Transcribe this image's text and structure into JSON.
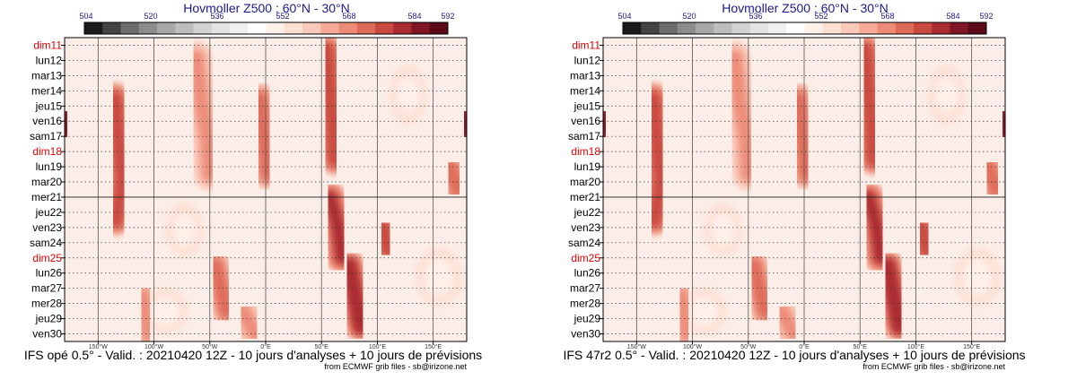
{
  "colors": {
    "colorbar": [
      "#1a1a1a",
      "#444444",
      "#6c6c6c",
      "#8c8c8c",
      "#a8a8a8",
      "#bdbdbd",
      "#d2d2d2",
      "#e3e3e3",
      "#f0f0f0",
      "#ffffff",
      "#fff0ea",
      "#fde0d4",
      "#fac8b8",
      "#f5ab98",
      "#ec8b78",
      "#de6a58",
      "#c84a40",
      "#a82c30",
      "#801624",
      "#5a0a18"
    ],
    "gridline": "#555555",
    "sunday_label": "#dd0000",
    "title": "#1a1a8c"
  },
  "panels": [
    {
      "title": "Hovmoller Z500 : 60°N - 30°N",
      "colorbar_labels": [
        "504",
        "520",
        "536",
        "552",
        "568",
        "584",
        "592"
      ],
      "caption": "IFS opé 0.5° - Valid. : 20210420 12Z - 10 jours d'analyses + 10 jours de prévisions",
      "source": "from ECMWF grib files - sb@irizone.net"
    },
    {
      "title": "Hovmoller Z500 : 60°N - 30°N",
      "colorbar_labels": [
        "504",
        "520",
        "536",
        "552",
        "568",
        "584",
        "592"
      ],
      "caption": "IFS 47r2 0.5° - Valid. : 20210420 12Z - 10 jours d'analyses + 10 jours de prévisions",
      "source": "from ECMWF grib files - sb@irizone.net"
    }
  ],
  "chart_data": {
    "type": "heatmap",
    "title": "Hovmoller Z500 : 60°N - 30°N",
    "variable": "Z500 (dam)",
    "colorbar_range": [
      504,
      592
    ],
    "colorbar_ticks": [
      504,
      520,
      536,
      552,
      568,
      584,
      592
    ],
    "x_range_deg": [
      -180,
      180
    ],
    "x_ticks": [
      {
        "deg": -150,
        "label": "150°W"
      },
      {
        "deg": -100,
        "label": "100°W"
      },
      {
        "deg": -50,
        "label": "50°W"
      },
      {
        "deg": 0,
        "label": "0°E"
      },
      {
        "deg": 50,
        "label": "50°E"
      },
      {
        "deg": 100,
        "label": "100°E"
      },
      {
        "deg": 150,
        "label": "150°E"
      }
    ],
    "y_days": [
      {
        "label": "dim11",
        "sunday": true
      },
      {
        "label": "lun12",
        "sunday": false
      },
      {
        "label": "mar13",
        "sunday": false
      },
      {
        "label": "mer14",
        "sunday": false
      },
      {
        "label": "jeu15",
        "sunday": false
      },
      {
        "label": "ven16",
        "sunday": false
      },
      {
        "label": "sam17",
        "sunday": false
      },
      {
        "label": "dim18",
        "sunday": true
      },
      {
        "label": "lun19",
        "sunday": false
      },
      {
        "label": "mar20",
        "sunday": false
      },
      {
        "label": "mer21",
        "sunday": false
      },
      {
        "label": "jeu22",
        "sunday": false
      },
      {
        "label": "ven23",
        "sunday": false
      },
      {
        "label": "sam24",
        "sunday": false
      },
      {
        "label": "dim25",
        "sunday": true
      },
      {
        "label": "lun26",
        "sunday": false
      },
      {
        "label": "mar27",
        "sunday": false
      },
      {
        "label": "mer28",
        "sunday": false
      },
      {
        "label": "jeu29",
        "sunday": false
      },
      {
        "label": "ven30",
        "sunday": false
      }
    ],
    "analysis_forecast_split_day": "mer21",
    "background_level_dam": 556,
    "ridges": [
      {
        "lon": [
          -180,
          -178
        ],
        "day": [
          4.6,
          5.8
        ],
        "peak_dam": 586
      },
      {
        "lon": [
          -135,
          -132,
          -128,
          -134
        ],
        "day": [
          3.5,
          6.0,
          9.0,
          11.5
        ],
        "peak_dam": 578
      },
      {
        "lon": [
          -110,
          -105
        ],
        "day": [
          16.5,
          19.0
        ],
        "peak_dam": 568
      },
      {
        "lon": [
          -62,
          -58,
          -52,
          -50
        ],
        "day": [
          0.8,
          3.5,
          6.2,
          8.5
        ],
        "peak_dam": 566
      },
      {
        "lon": [
          -45,
          -40,
          -35
        ],
        "day": [
          14.5,
          16.0,
          17.5
        ],
        "peak_dam": 570
      },
      {
        "lon": [
          -5,
          -2,
          2
        ],
        "day": [
          3.5,
          5.5,
          8.5
        ],
        "peak_dam": 570
      },
      {
        "lon": [
          -20,
          -10
        ],
        "day": [
          17.5,
          19.0
        ],
        "peak_dam": 566
      },
      {
        "lon": [
          55,
          57,
          60,
          62
        ],
        "day": [
          0.3,
          2.5,
          5.0,
          7.5
        ],
        "peak_dam": 578
      },
      {
        "lon": [
          58,
          65,
          68
        ],
        "day": [
          10.0,
          12.0,
          14.0
        ],
        "peak_dam": 580
      },
      {
        "lon": [
          75,
          80,
          85
        ],
        "day": [
          14.5,
          16.5,
          18.5
        ],
        "peak_dam": 582
      },
      {
        "lon": [
          105,
          110
        ],
        "day": [
          12.0,
          13.5
        ],
        "peak_dam": 578
      },
      {
        "lon": [
          165,
          172
        ],
        "day": [
          8.0,
          9.5
        ],
        "peak_dam": 572
      },
      {
        "lon": [
          178,
          180
        ],
        "day": [
          4.6,
          5.8
        ],
        "peak_dam": 586
      }
    ],
    "troughs": [
      {
        "lon": [
          125,
          130
        ],
        "day": [
          2.5,
          4.0
        ],
        "trough_dam": 548
      },
      {
        "lon": [
          -75,
          -70
        ],
        "day": [
          11.5,
          12.8
        ],
        "trough_dam": 548
      },
      {
        "lon": [
          150,
          160
        ],
        "day": [
          14.5,
          16.0
        ],
        "trough_dam": 546
      },
      {
        "lon": [
          -95,
          -85
        ],
        "day": [
          17.0,
          18.0
        ],
        "trough_dam": 550
      }
    ]
  }
}
